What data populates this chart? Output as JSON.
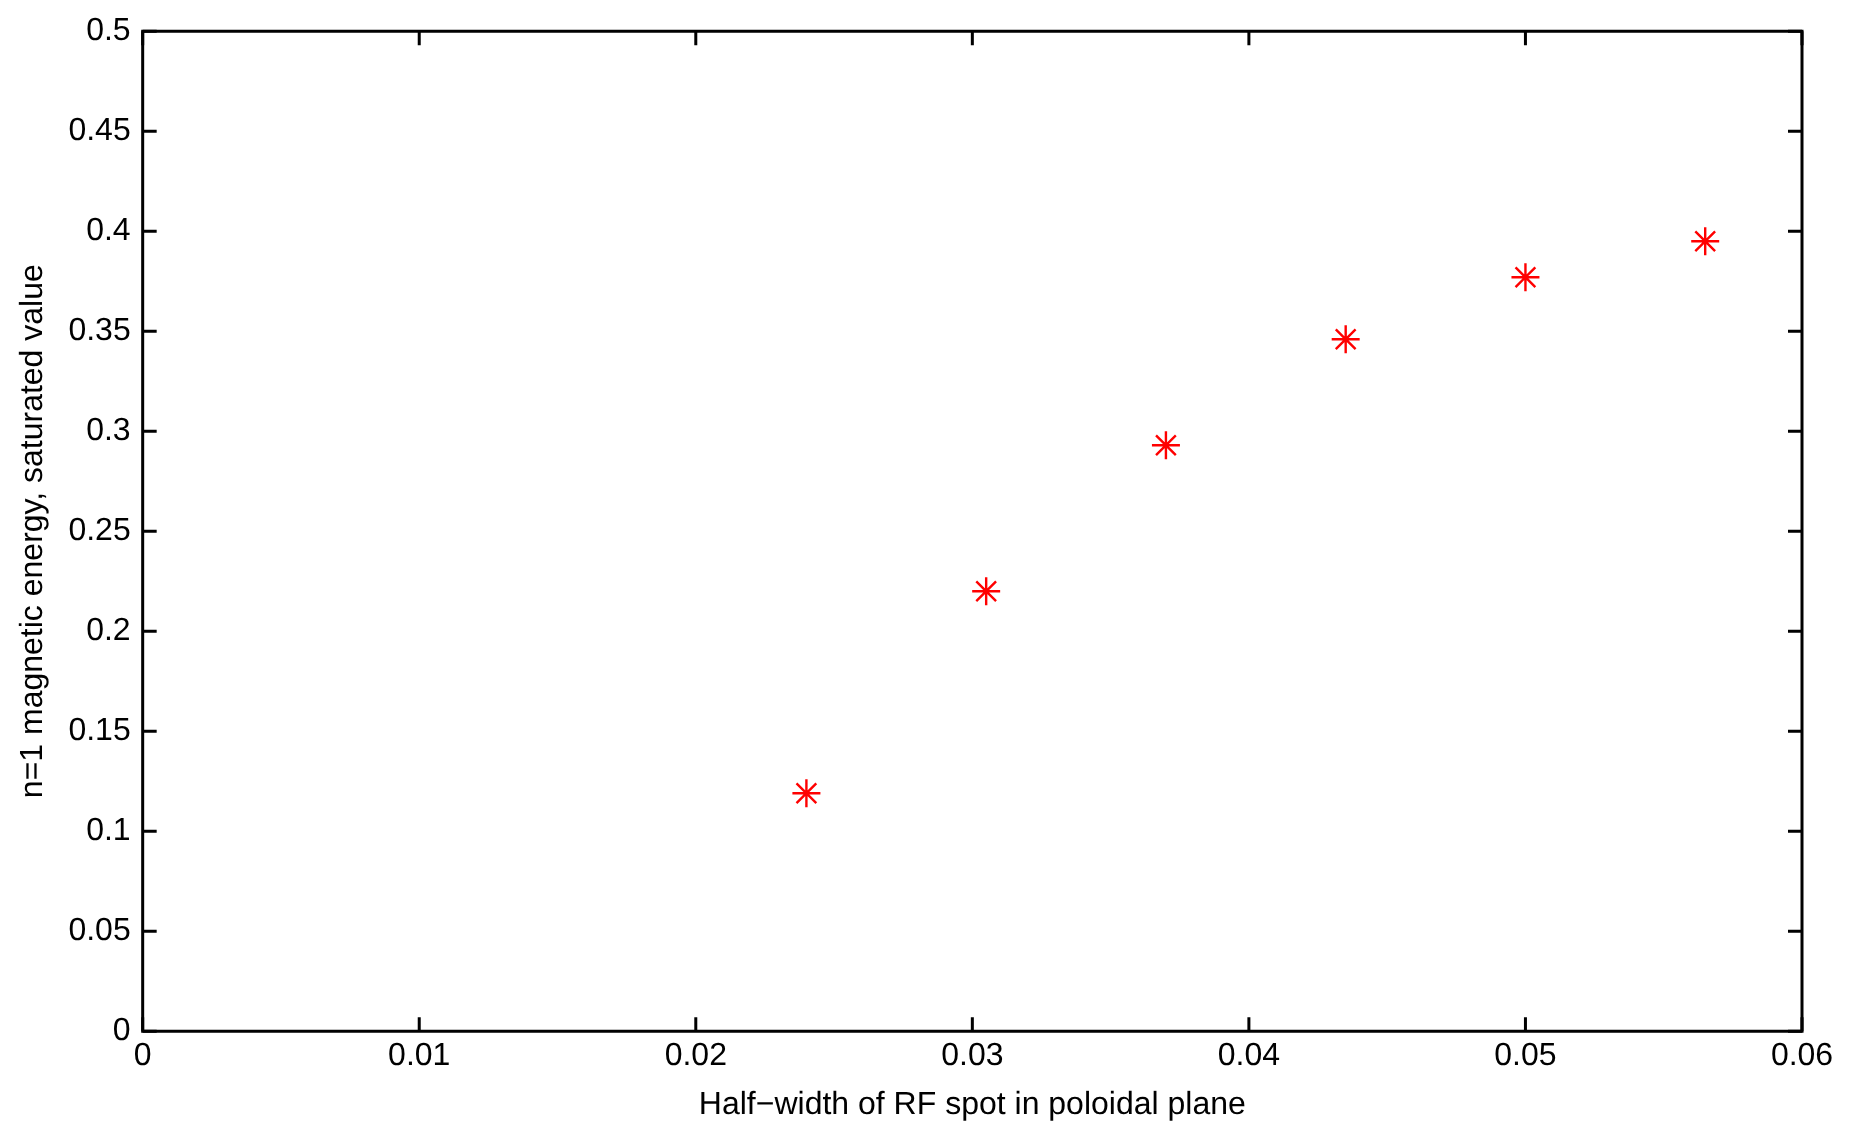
{
  "chart_data": {
    "type": "scatter",
    "xlabel": "Half−width of RF spot in poloidal plane",
    "ylabel": "n=1 magnetic energy, saturated value",
    "x": [
      0.024,
      0.0305,
      0.037,
      0.0435,
      0.05,
      0.0565
    ],
    "series": [
      {
        "color": "#ff0000",
        "values": [
          0.119,
          0.22,
          0.293,
          0.346,
          0.377,
          0.395
        ]
      }
    ],
    "xlim": [
      0,
      0.06
    ],
    "xticks": [
      0,
      0.01,
      0.02,
      0.03,
      0.04,
      0.05,
      0.06
    ],
    "ylim": [
      0,
      0.5
    ],
    "yticks": [
      0,
      0.05,
      0.1,
      0.15,
      0.2,
      0.25,
      0.3,
      0.35,
      0.4,
      0.45,
      0.5
    ],
    "grid": false,
    "legend": false,
    "marker": "cross"
  }
}
